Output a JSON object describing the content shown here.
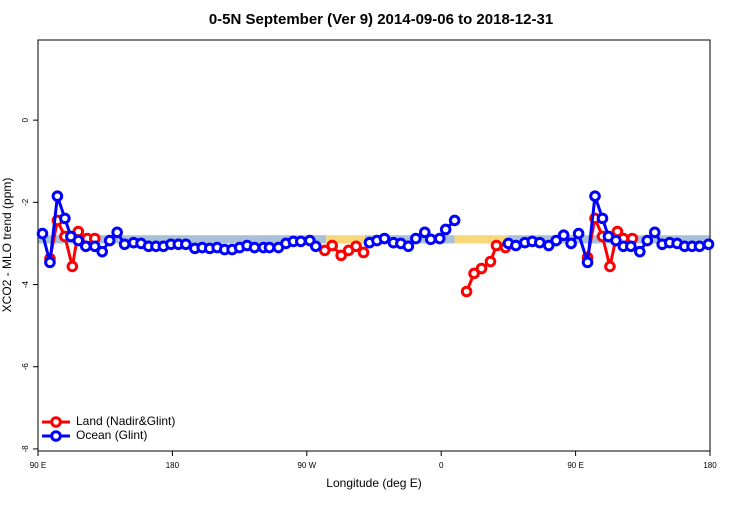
{
  "chart_data": {
    "type": "line",
    "title": "0-5N September (Ver 9)   2014-09-06 to 2018-12-31",
    "x_label": "Longitude (deg E)",
    "y_label": "XCO2 - MLO trend (ppm)",
    "xlim": [
      90,
      540
    ],
    "ylim": [
      -8.05,
      1.95
    ],
    "xticks": [
      {
        "value": 90,
        "label": "90 E"
      },
      {
        "value": 180,
        "label": "180"
      },
      {
        "value": 270,
        "label": "90 W"
      },
      {
        "value": 360,
        "label": "0"
      },
      {
        "value": 450,
        "label": "90 E"
      },
      {
        "value": 540,
        "label": "180"
      }
    ],
    "yticks": [
      0,
      -2,
      -4,
      -6,
      -8
    ],
    "legend": "bottomleft",
    "band_ylim": [
      -3.0,
      -2.8
    ],
    "bands": [
      {
        "x": [
          90,
          283
        ],
        "color": "#aabfd8"
      },
      {
        "x": [
          283,
          309
        ],
        "color": "#f8d77a"
      },
      {
        "x": [
          309,
          369
        ],
        "color": "#aabfd8"
      },
      {
        "x": [
          369,
          405
        ],
        "color": "#f8d77a"
      },
      {
        "x": [
          405,
          540
        ],
        "color": "#aabfd8"
      }
    ],
    "series": [
      {
        "name": "Land (Nadir&Glint)",
        "color": "#ff0000",
        "x": [
          98,
          103,
          108,
          113,
          117,
          123,
          null,
          128,
          null,
          282,
          287,
          293,
          298,
          303,
          308,
          null,
          377,
          382,
          387,
          393,
          397,
          403,
          null,
          458,
          463,
          468,
          473,
          478,
          482,
          null,
          488
        ],
        "values": [
          -3.37,
          -2.44,
          -2.83,
          -3.56,
          -2.71,
          -2.88,
          null,
          -2.88,
          null,
          -3.17,
          -3.05,
          -3.29,
          -3.17,
          -3.07,
          -3.22,
          null,
          -4.17,
          -3.73,
          -3.61,
          -3.44,
          -3.05,
          -3.1,
          null,
          -3.34,
          -2.39,
          -2.83,
          -3.56,
          -2.71,
          -2.88,
          null,
          -2.88
        ]
      },
      {
        "name": "Ocean (Glint)",
        "color": "#0000ff",
        "x": [
          93,
          98,
          103,
          108,
          112,
          117,
          122,
          128,
          133,
          138,
          143,
          148,
          154,
          159,
          164,
          169,
          174,
          179,
          184,
          189,
          195,
          200,
          205,
          210,
          215,
          220,
          225,
          230,
          235,
          241,
          245,
          251,
          256,
          261,
          266,
          272,
          276,
          null,
          312,
          317,
          322,
          328,
          333,
          338,
          343,
          349,
          353,
          359,
          363,
          369,
          null,
          405,
          410,
          416,
          421,
          426,
          432,
          437,
          442,
          447,
          452,
          458,
          463,
          468,
          472,
          477,
          482,
          487,
          493,
          498,
          503,
          508,
          513,
          518,
          523,
          528,
          533,
          539
        ],
        "values": [
          -2.76,
          -3.46,
          -1.85,
          -2.39,
          -2.83,
          -2.93,
          -3.07,
          -3.07,
          -3.2,
          -2.93,
          -2.73,
          -3.02,
          -2.98,
          -3.0,
          -3.07,
          -3.07,
          -3.07,
          -3.02,
          -3.02,
          -3.02,
          -3.12,
          -3.1,
          -3.12,
          -3.1,
          -3.15,
          -3.15,
          -3.1,
          -3.05,
          -3.1,
          -3.1,
          -3.1,
          -3.1,
          -3.0,
          -2.95,
          -2.95,
          -2.93,
          -3.07,
          null,
          -2.98,
          -2.93,
          -2.88,
          -2.98,
          -3.0,
          -3.07,
          -2.88,
          -2.73,
          -2.9,
          -2.88,
          -2.66,
          -2.44,
          null,
          -3.0,
          -3.05,
          -2.98,
          -2.95,
          -2.98,
          -3.05,
          -2.93,
          -2.8,
          -3.0,
          -2.76,
          -3.46,
          -1.85,
          -2.39,
          -2.83,
          -2.93,
          -3.07,
          -3.07,
          -3.2,
          -2.93,
          -2.73,
          -3.02,
          -2.98,
          -3.0,
          -3.07,
          -3.07,
          -3.07,
          -3.02
        ]
      }
    ]
  }
}
